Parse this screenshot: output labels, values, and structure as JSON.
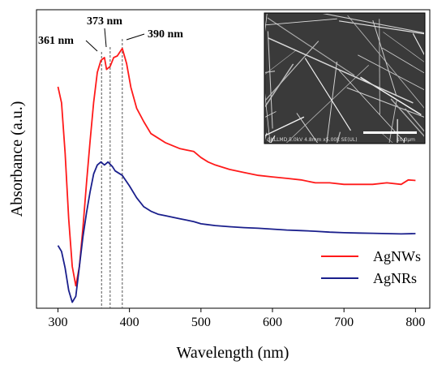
{
  "chart_data": {
    "type": "line",
    "xlabel": "Wavelength (nm)",
    "ylabel": "Absorbance (a.u.)",
    "xlim": [
      270,
      820
    ],
    "ylim": [
      0,
      1.0
    ],
    "x_ticks": [
      300,
      400,
      500,
      600,
      700,
      800
    ],
    "y_ticks_shown": false,
    "grid": false,
    "legend_position": "bottom-right",
    "series": [
      {
        "name": "AgNWs",
        "color": "#ff1a1a",
        "x": [
          300,
          305,
          310,
          315,
          320,
          325,
          330,
          335,
          340,
          345,
          350,
          355,
          360,
          365,
          368,
          373,
          378,
          383,
          390,
          396,
          402,
          410,
          420,
          430,
          440,
          450,
          460,
          470,
          480,
          490,
          500,
          510,
          520,
          540,
          560,
          580,
          600,
          620,
          640,
          660,
          680,
          700,
          720,
          740,
          760,
          780,
          790,
          800
        ],
        "y": [
          0.742,
          0.688,
          0.52,
          0.3,
          0.14,
          0.075,
          0.14,
          0.27,
          0.42,
          0.56,
          0.69,
          0.79,
          0.83,
          0.84,
          0.8,
          0.81,
          0.84,
          0.845,
          0.87,
          0.82,
          0.74,
          0.67,
          0.625,
          0.585,
          0.57,
          0.555,
          0.545,
          0.535,
          0.53,
          0.525,
          0.505,
          0.49,
          0.48,
          0.465,
          0.455,
          0.445,
          0.44,
          0.435,
          0.43,
          0.42,
          0.42,
          0.415,
          0.415,
          0.415,
          0.42,
          0.415,
          0.43,
          0.428
        ]
      },
      {
        "name": "AgNRs",
        "color": "#1a1f8c",
        "x": [
          300,
          305,
          310,
          315,
          320,
          325,
          330,
          335,
          340,
          345,
          350,
          355,
          360,
          365,
          370,
          376,
          380,
          390,
          400,
          410,
          420,
          430,
          440,
          450,
          460,
          470,
          480,
          490,
          500,
          520,
          540,
          560,
          580,
          600,
          620,
          640,
          660,
          680,
          700,
          720,
          740,
          760,
          780,
          800
        ],
        "y": [
          0.21,
          0.19,
          0.135,
          0.06,
          0.02,
          0.04,
          0.14,
          0.24,
          0.32,
          0.39,
          0.45,
          0.48,
          0.49,
          0.48,
          0.49,
          0.475,
          0.46,
          0.445,
          0.41,
          0.37,
          0.34,
          0.325,
          0.315,
          0.31,
          0.305,
          0.3,
          0.295,
          0.29,
          0.283,
          0.277,
          0.273,
          0.27,
          0.268,
          0.265,
          0.262,
          0.26,
          0.258,
          0.255,
          0.253,
          0.252,
          0.251,
          0.25,
          0.249,
          0.25
        ]
      }
    ],
    "annotations": [
      {
        "text": "361 nm",
        "x": 361
      },
      {
        "text": "373 nm",
        "x": 373
      },
      {
        "text": "390 nm",
        "x": 390
      }
    ],
    "inset": {
      "description_text": "SKLLMD 5.0kV 4.8mm x5.00k SE(UL)",
      "scale_bar_label": "10.0μm"
    }
  }
}
